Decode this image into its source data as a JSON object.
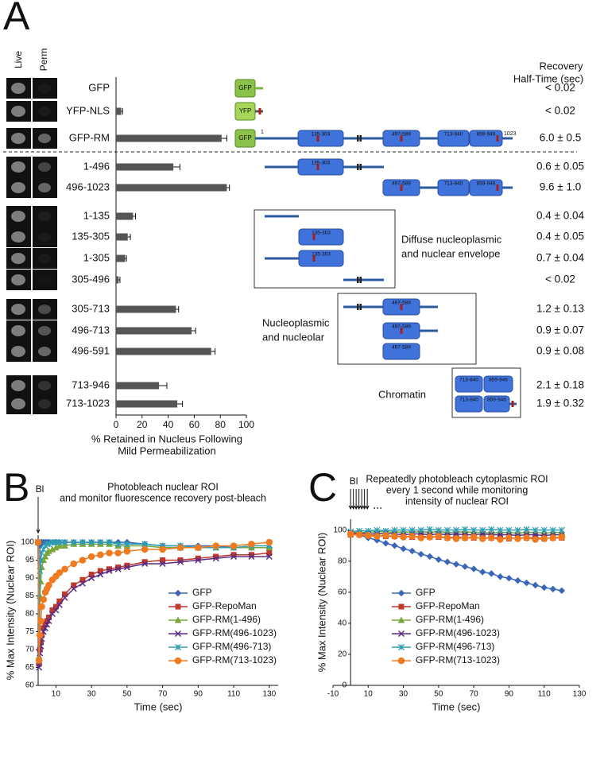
{
  "panels": {
    "a": "A",
    "b": "B",
    "c": "C"
  },
  "panel_a": {
    "column_headers": [
      "Live",
      "Perm"
    ],
    "half_time_header": [
      "Recovery",
      "Half-Time (sec)"
    ],
    "half_times": [
      {
        "text": "< 0.02",
        "color": "#2e8b1f"
      },
      {
        "text": "< 0.02",
        "color": "#2e8b1f"
      },
      {
        "text": "6.0 ± 0.5",
        "color": "#111111"
      },
      {
        "text": "0.6 ± 0.05",
        "color": "#111111"
      },
      {
        "text": "9.6 ± 1.0",
        "color": "#111111"
      },
      {
        "text": "0.4 ± 0.04",
        "color": "#111111"
      },
      {
        "text": "0.4 ± 0.05",
        "color": "#111111"
      },
      {
        "text": "0.7 ± 0.04",
        "color": "#111111"
      },
      {
        "text": "< 0.02",
        "color": "#2e8b1f"
      },
      {
        "text": "1.2 ± 0.13",
        "color": "#111111"
      },
      {
        "text": "0.9 ± 0.07",
        "color": "#111111"
      },
      {
        "text": "0.9 ± 0.08",
        "color": "#111111"
      },
      {
        "text": "2.1 ± 0.18",
        "color": "#111111"
      },
      {
        "text": "1.9 ± 0.32",
        "color": "#111111"
      }
    ],
    "construct_labels": {
      "gfp": "GFP",
      "yfp": "YFP",
      "start": "1",
      "end": "1023",
      "domains": [
        "135-303",
        "497-589",
        "713-840",
        "859-946"
      ]
    },
    "groups": [
      [
        "Diffuse nucleoplasmic",
        "and nuclear envelope"
      ],
      [
        "Nucleoplasmic",
        "and nucleolar"
      ],
      [
        "Chromatin"
      ]
    ]
  },
  "chart_data": [
    {
      "type": "hbar",
      "categories": [
        "GFP",
        "YFP-NLS",
        "GFP-RM",
        "1-496",
        "496-1023",
        "1-135",
        "135-305",
        "1-305",
        "305-496",
        "305-713",
        "496-713",
        "496-591",
        "713-946",
        "713-1023"
      ],
      "values": [
        0,
        4,
        81,
        44,
        85,
        13,
        9,
        7,
        2,
        46,
        58,
        73,
        33,
        47
      ],
      "errors": [
        0,
        1,
        4,
        5,
        2,
        2,
        2,
        1,
        1,
        2,
        3,
        3,
        6,
        4
      ],
      "color": "#555555",
      "xlim": [
        0,
        100
      ],
      "xticks": [
        0,
        20,
        40,
        60,
        80,
        100
      ],
      "xlabel": [
        "% Retained in Nucleus Following",
        "Mild Permeabilization"
      ]
    },
    {
      "type": "line",
      "title": [
        "Photobleach nuclear ROI",
        "and monitor fluorescence recovery post-bleach"
      ],
      "annotation": "Bl",
      "xlabel": "Time (sec)",
      "ylabel": "% Max Intensity (Nuclear ROI)",
      "xlim": [
        0,
        135
      ],
      "xticks": [
        10,
        30,
        50,
        70,
        90,
        110,
        130
      ],
      "ylim": [
        60,
        102
      ],
      "yticks": [
        60,
        65,
        70,
        75,
        80,
        85,
        90,
        95,
        100
      ],
      "x": [
        0,
        0.5,
        1,
        1.5,
        2,
        3,
        4,
        5,
        6,
        8,
        10,
        12,
        15,
        20,
        25,
        30,
        35,
        40,
        45,
        50,
        60,
        70,
        80,
        90,
        100,
        110,
        120,
        130
      ],
      "series": [
        {
          "name": "GFP",
          "color": "#3a66b8",
          "marker": "diamond",
          "values": [
            100,
            66,
            99,
            99.5,
            100,
            100,
            100,
            100,
            100,
            100,
            100,
            100,
            100,
            100,
            100,
            100,
            100,
            100,
            100,
            100,
            99.5,
            99,
            99,
            99,
            99,
            98.5,
            98.5,
            98.5
          ]
        },
        {
          "name": "GFP-RepoMan",
          "color": "#c0392b",
          "marker": "square",
          "values": [
            100,
            66,
            70,
            72,
            74,
            76,
            77,
            78,
            79,
            81,
            82,
            83.5,
            85.5,
            88,
            89.5,
            91,
            92,
            92.5,
            93,
            93.5,
            94.5,
            95,
            95,
            95.5,
            96,
            96.5,
            96.5,
            97
          ]
        },
        {
          "name": "GFP-RM(1-496)",
          "color": "#7aa63a",
          "marker": "triangle",
          "values": [
            100,
            68,
            85,
            89,
            93,
            95,
            96,
            97,
            97.5,
            98,
            98.5,
            99,
            99,
            99.5,
            99.5,
            99.5,
            99.5,
            99.5,
            99,
            99,
            99,
            98.5,
            98.5,
            98.5,
            98.5,
            98.5,
            98.5,
            98.5
          ]
        },
        {
          "name": "GFP-RM(496-1023)",
          "color": "#5b2c83",
          "marker": "x",
          "values": [
            100,
            65,
            69,
            71,
            73,
            75,
            76,
            77,
            78,
            80,
            81,
            82.5,
            84.5,
            87,
            88.5,
            90,
            91,
            92,
            92.5,
            93,
            94,
            94,
            94.5,
            95,
            95.5,
            96,
            96,
            96
          ]
        },
        {
          "name": "GFP-RM(496-713)",
          "color": "#2f9fb0",
          "marker": "asterisk",
          "values": [
            100,
            67,
            92,
            95,
            97,
            98,
            99,
            99.5,
            99.5,
            100,
            100,
            100,
            100,
            100,
            100,
            100,
            100,
            100,
            99.5,
            99.5,
            99.5,
            99,
            99,
            98.5,
            98.5,
            98.5,
            99,
            99
          ]
        },
        {
          "name": "GFP-RM(713-1023)",
          "color": "#f07a20",
          "marker": "circle",
          "values": [
            100,
            67,
            74,
            78,
            82,
            84,
            86,
            87,
            88,
            89.5,
            90.5,
            91.5,
            92.5,
            94,
            95,
            96,
            96.5,
            97,
            97,
            97.5,
            98,
            98,
            98.5,
            98.5,
            99,
            99,
            99.5,
            100
          ]
        }
      ]
    },
    {
      "type": "line",
      "title": [
        "Repeatedly photobleach cytoplasmic ROI",
        "every 1 second while monitoring",
        "intensity of nuclear ROI"
      ],
      "annotation": "Bl",
      "xlabel": "Time (sec)",
      "ylabel": "% Max Intensity (Nuclear ROI)",
      "xlim": [
        -10,
        130
      ],
      "xticks": [
        -10,
        10,
        30,
        50,
        70,
        90,
        110,
        130
      ],
      "ylim": [
        0,
        107
      ],
      "yticks": [
        0,
        20,
        40,
        60,
        80,
        100
      ],
      "x": [
        0,
        5,
        10,
        15,
        20,
        25,
        30,
        35,
        40,
        45,
        50,
        55,
        60,
        65,
        70,
        75,
        80,
        85,
        90,
        95,
        100,
        105,
        110,
        115,
        120
      ],
      "series": [
        {
          "name": "GFP",
          "color": "#3a66b8",
          "marker": "diamond",
          "values": [
            98,
            97,
            95,
            93.5,
            91.5,
            90,
            88,
            86.5,
            84.5,
            83,
            81,
            79.5,
            78,
            76.5,
            75,
            73,
            72,
            70,
            69,
            67.5,
            66,
            64.5,
            63,
            62,
            61
          ]
        },
        {
          "name": "GFP-RepoMan",
          "color": "#c0392b",
          "marker": "square",
          "values": [
            97,
            97,
            96.5,
            96.5,
            96,
            96,
            96,
            95.5,
            96,
            95.5,
            95.5,
            95,
            95.5,
            95,
            95,
            95,
            95,
            95,
            94.5,
            95,
            95,
            95,
            94.5,
            95,
            95
          ]
        },
        {
          "name": "GFP-RM(1-496)",
          "color": "#7aa63a",
          "marker": "triangle",
          "values": [
            98.5,
            98.5,
            98.5,
            99,
            99,
            98.5,
            99,
            98.5,
            99,
            98.5,
            99,
            98.5,
            98.5,
            99,
            98.5,
            98.5,
            98,
            98.5,
            98.5,
            98,
            98.5,
            98.5,
            98,
            98.5,
            98.5
          ]
        },
        {
          "name": "GFP-RM(496-1023)",
          "color": "#5b2c83",
          "marker": "x",
          "values": [
            98,
            98,
            97.5,
            97.5,
            98,
            97.5,
            97,
            97.5,
            97.5,
            97,
            97.5,
            97,
            97.5,
            97,
            97,
            97.5,
            97,
            97,
            97,
            96.5,
            97,
            97,
            96.5,
            97,
            97
          ]
        },
        {
          "name": "GFP-RM(496-713)",
          "color": "#2f9fb0",
          "marker": "asterisk",
          "values": [
            99,
            99.5,
            99.5,
            100,
            99.5,
            100,
            100,
            100,
            100,
            100.5,
            100,
            100,
            100,
            100.5,
            100,
            100,
            100.5,
            100,
            100,
            100,
            100.5,
            100,
            100,
            100,
            100
          ]
        },
        {
          "name": "GFP-RM(713-1023)",
          "color": "#f07a20",
          "marker": "circle",
          "values": [
            97.5,
            97,
            96.5,
            96,
            96.5,
            96,
            95.5,
            96,
            95,
            95.5,
            96,
            95,
            94.5,
            95,
            95.5,
            94.5,
            95,
            94,
            95,
            94.5,
            95,
            94,
            94.5,
            95,
            95.5
          ]
        }
      ]
    }
  ]
}
